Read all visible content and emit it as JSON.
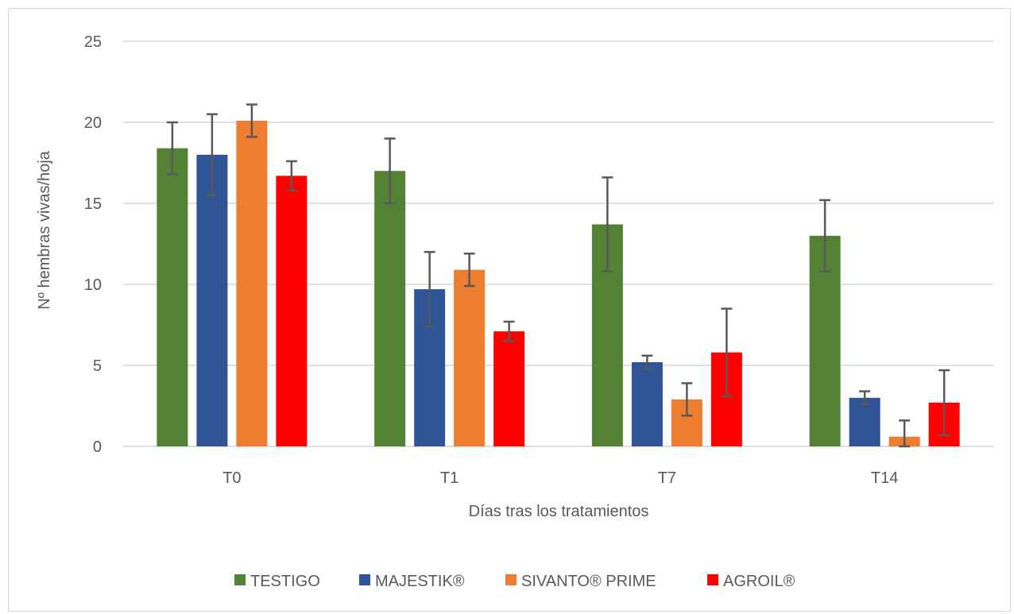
{
  "chart_data": {
    "type": "bar",
    "title": "",
    "xlabel": "Días tras los tratamientos",
    "ylabel": "Nº hembras vivas/hoja",
    "ylim": [
      0,
      25
    ],
    "yticks": [
      0,
      5,
      10,
      15,
      20,
      25
    ],
    "grid": true,
    "legend_position": "bottom",
    "categories": [
      "T0",
      "T1",
      "T7",
      "T14"
    ],
    "series": [
      {
        "name": "TESTIGO",
        "color": "#548235",
        "values": [
          18.4,
          17.0,
          13.7,
          13.0
        ],
        "error": [
          1.6,
          2.0,
          2.9,
          2.2
        ]
      },
      {
        "name": "MAJESTIK®",
        "color": "#2F5597",
        "values": [
          18.0,
          9.7,
          5.2,
          3.0
        ],
        "error": [
          2.5,
          2.3,
          0.4,
          0.4
        ]
      },
      {
        "name": "SIVANTO® PRIME",
        "color": "#ED7D31",
        "values": [
          20.1,
          10.9,
          2.9,
          0.6
        ],
        "error": [
          1.0,
          1.0,
          1.0,
          1.0
        ]
      },
      {
        "name": "AGROIL®",
        "color": "#FF0000",
        "values": [
          16.7,
          7.1,
          5.8,
          2.7
        ],
        "error": [
          0.9,
          0.6,
          2.7,
          2.0
        ]
      }
    ]
  }
}
